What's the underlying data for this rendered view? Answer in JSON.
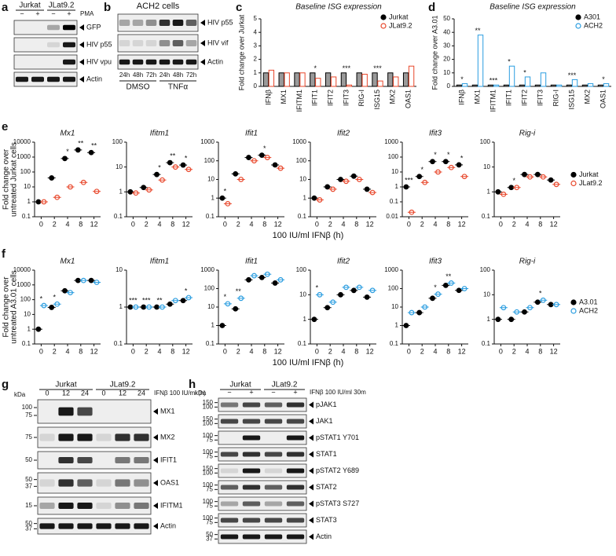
{
  "blots": [
    {
      "panel": "a",
      "groups": [
        "Jurkat",
        "JLat9.2"
      ],
      "lanes": [
        "−",
        "+",
        "−",
        "+"
      ],
      "treatment": "PMA",
      "bands": [
        {
          "name": "GFP",
          "levels": [
            0,
            0,
            0.3,
            1
          ]
        },
        {
          "name": "HIV p55",
          "levels": [
            0,
            0,
            0.1,
            0.9
          ]
        },
        {
          "name": "HIV vpu",
          "levels": [
            0,
            0,
            0,
            0.9
          ]
        },
        {
          "name": "Actin",
          "levels": [
            0.9,
            0.9,
            0.9,
            0.9
          ]
        }
      ]
    },
    {
      "panel": "b",
      "title": "ACH2 cells",
      "groups": [
        "DMSO",
        "TNFα"
      ],
      "lanes": [
        "24h",
        "48h",
        "72h",
        "24h",
        "48h",
        "72h"
      ],
      "bands": [
        {
          "name": "HIV p55",
          "levels": [
            0.3,
            0.3,
            0.4,
            0.8,
            0.9,
            0.6
          ]
        },
        {
          "name": "HIV vif",
          "levels": [
            0.1,
            0.1,
            0.1,
            0.4,
            0.6,
            0.3
          ]
        },
        {
          "name": "Actin",
          "levels": [
            0.9,
            0.9,
            0.9,
            0.9,
            0.9,
            0.9
          ]
        }
      ]
    },
    {
      "panel": "g",
      "kda": "kDa",
      "groups": [
        "Jurkat",
        "JLat9.2"
      ],
      "lanes": [
        "0",
        "12",
        "24",
        "0",
        "12",
        "24"
      ],
      "treatment": "IFNβ 100 IU/ml (h)",
      "bands": [
        {
          "name": "MX1",
          "ladder": [
            "100",
            "75"
          ],
          "levels": [
            0,
            0.9,
            0.7,
            0,
            0,
            0
          ]
        },
        {
          "name": "MX2",
          "ladder": [
            "75"
          ],
          "levels": [
            0.1,
            0.9,
            0.9,
            0.1,
            0.8,
            0.8
          ]
        },
        {
          "name": "IFIT1",
          "ladder": [
            "50"
          ],
          "levels": [
            0,
            0.8,
            0.7,
            0,
            0.5,
            0.5
          ]
        },
        {
          "name": "OAS1",
          "ladder": [
            "50",
            "37"
          ],
          "levels": [
            0.1,
            0.8,
            0.6,
            0.1,
            0.5,
            0.4
          ]
        },
        {
          "name": "IFITM1",
          "ladder": [
            "15"
          ],
          "levels": [
            0.3,
            0.9,
            0.9,
            0.1,
            0.4,
            0.5
          ]
        },
        {
          "name": "Actin",
          "ladder": [
            "50",
            "37"
          ],
          "levels": [
            0.9,
            0.9,
            0.9,
            0.9,
            0.9,
            0.9
          ]
        }
      ]
    },
    {
      "panel": "h",
      "kda": "kDa",
      "groups": [
        "Jurkat",
        "JLat9.2"
      ],
      "lanes": [
        "−",
        "+",
        "−",
        "+"
      ],
      "treatment": "IFNβ 100 IU/ml 30m",
      "bands": [
        {
          "name": "pJAK1",
          "ladder": [
            "150",
            "100"
          ],
          "levels": [
            0.5,
            0.7,
            0.6,
            0.8
          ]
        },
        {
          "name": "JAK1",
          "ladder": [
            "150",
            "100"
          ],
          "levels": [
            0.7,
            0.7,
            0.7,
            0.7
          ]
        },
        {
          "name": "pSTAT1 Y701",
          "ladder": [
            "100",
            "75"
          ],
          "levels": [
            0,
            0.9,
            0,
            0.9
          ]
        },
        {
          "name": "STAT1",
          "ladder": [
            "100",
            "75"
          ],
          "levels": [
            0.7,
            0.8,
            0.7,
            0.8
          ]
        },
        {
          "name": "pSTAT2 Y689",
          "ladder": [
            "150",
            "100"
          ],
          "levels": [
            0.1,
            0.9,
            0.1,
            0.9
          ]
        },
        {
          "name": "STAT2",
          "ladder": [
            "100",
            "75"
          ],
          "levels": [
            0.6,
            0.8,
            0.6,
            0.8
          ]
        },
        {
          "name": "pSTAT3 S727",
          "ladder": [
            "100",
            "75"
          ],
          "levels": [
            0.3,
            0.6,
            0.3,
            0.6
          ]
        },
        {
          "name": "STAT3",
          "ladder": [
            "100",
            "75"
          ],
          "levels": [
            0.7,
            0.7,
            0.7,
            0.7
          ]
        },
        {
          "name": "Actin",
          "ladder": [
            "50",
            "37"
          ],
          "levels": [
            0.9,
            0.9,
            0.9,
            0.9
          ]
        }
      ]
    }
  ],
  "chart_data": [
    {
      "type": "bar",
      "panel": "c",
      "title": "Baseline ISG expression",
      "ylabel": "Fold change over Jurkat",
      "categories": [
        "IFNβ",
        "MX1",
        "IFITM1",
        "IFIT1",
        "IFIT2",
        "IFIT3",
        "RIG-I",
        "ISG15",
        "MX2",
        "OAS1"
      ],
      "series": [
        {
          "name": "Jurkat",
          "color": "#000000",
          "filled": true,
          "values": [
            1,
            1,
            1,
            1,
            1,
            1,
            1,
            1,
            1,
            1
          ]
        },
        {
          "name": "JLat9.2",
          "color": "#e8472b",
          "filled": false,
          "values": [
            1.2,
            1,
            1,
            0.6,
            0.7,
            0.1,
            0.9,
            0.4,
            0.7,
            1.5
          ]
        }
      ],
      "significance": [
        null,
        null,
        null,
        "*",
        null,
        "***",
        null,
        "***",
        null,
        null
      ],
      "ylim": [
        0,
        5
      ],
      "yticks": [
        0,
        1,
        2,
        3,
        4,
        5
      ]
    },
    {
      "type": "bar",
      "panel": "d",
      "title": "Baseline ISG expression",
      "ylabel": "Fold change over A3.01",
      "categories": [
        "IFNβ",
        "MX1",
        "IFITM1",
        "IFIT1",
        "IFIT2",
        "IFIT3",
        "RIG-I",
        "ISG15",
        "MX2",
        "OAS1"
      ],
      "series": [
        {
          "name": "A301",
          "color": "#000000",
          "filled": true,
          "values": [
            1,
            1,
            1,
            1,
            1,
            1,
            1,
            1,
            1,
            1
          ]
        },
        {
          "name": "ACH2",
          "color": "#2a9de0",
          "filled": false,
          "values": [
            2,
            38,
            1,
            15,
            7,
            10,
            1,
            5,
            2,
            2
          ]
        }
      ],
      "significance": [
        "*",
        "**",
        "***",
        "*",
        "*",
        null,
        null,
        "***",
        null,
        "*"
      ],
      "ylim": [
        0,
        50
      ],
      "yticks": [
        0,
        10,
        20,
        30,
        40,
        50
      ]
    },
    {
      "type": "dot-row",
      "panel": "e",
      "log": true,
      "ylabel": [
        "Fold change over",
        "untreated Jurkat cells"
      ],
      "xlabel": "100 IU/ml IFNβ (h)",
      "categories": [
        "0",
        "2",
        "4",
        "8",
        "12"
      ],
      "series": [
        {
          "name": "Jurkat",
          "color": "#000000",
          "filled": true
        },
        {
          "name": "JLat9.2",
          "color": "#e8472b",
          "filled": false
        }
      ],
      "panels": [
        {
          "title": "Mx1",
          "ylim": [
            0.1,
            10000
          ],
          "yticks": [
            0.1,
            1,
            10,
            100,
            1000,
            10000
          ],
          "values": [
            [
              1,
              40,
              800,
              3000,
              2000
            ],
            [
              1,
              2,
              10,
              20,
              5
            ]
          ],
          "significance": [
            null,
            null,
            "*",
            "**",
            "**"
          ]
        },
        {
          "title": "Ifitm1",
          "ylim": [
            0.1,
            100
          ],
          "yticks": [
            0.1,
            1,
            10,
            100
          ],
          "values": [
            [
              1,
              1.5,
              5,
              15,
              12
            ],
            [
              0.9,
              1.2,
              3,
              10,
              8
            ]
          ],
          "significance": [
            null,
            null,
            "*",
            "**",
            "*"
          ]
        },
        {
          "title": "Ifit1",
          "ylim": [
            0.1,
            1000
          ],
          "yticks": [
            0.1,
            1,
            10,
            100,
            1000
          ],
          "values": [
            [
              1,
              20,
              150,
              200,
              60
            ],
            [
              0.5,
              10,
              100,
              150,
              40
            ]
          ],
          "significance": [
            "*",
            null,
            null,
            "*",
            null
          ]
        },
        {
          "title": "Ifit2",
          "ylim": [
            0.1,
            1000
          ],
          "yticks": [
            0.1,
            1,
            10,
            100,
            1000
          ],
          "values": [
            [
              1,
              4,
              10,
              15,
              3
            ],
            [
              0.8,
              3,
              8,
              10,
              2
            ]
          ],
          "significance": [
            null,
            null,
            null,
            null,
            null
          ]
        },
        {
          "title": "Ifit3",
          "ylim": [
            0.01,
            1000
          ],
          "yticks": [
            0.01,
            0.1,
            1,
            10,
            100,
            1000
          ],
          "values": [
            [
              1,
              5,
              50,
              50,
              30
            ],
            [
              0.02,
              2,
              10,
              20,
              5
            ]
          ],
          "significance": [
            "***",
            "*",
            "*",
            "*",
            "*"
          ]
        },
        {
          "title": "Rig-i",
          "ylim": [
            0.1,
            100
          ],
          "yticks": [
            0.1,
            1,
            10,
            100
          ],
          "values": [
            [
              1,
              1.5,
              5,
              5,
              3
            ],
            [
              0.8,
              1.5,
              4,
              4,
              2
            ]
          ],
          "significance": [
            null,
            "*",
            null,
            null,
            null
          ]
        }
      ]
    },
    {
      "type": "dot-row",
      "panel": "f",
      "log": true,
      "ylabel": [
        "Fold change over",
        "untreated A3.01 cells"
      ],
      "xlabel": "100 IU/ml IFNβ (h)",
      "categories": [
        "0",
        "2",
        "4",
        "8",
        "12"
      ],
      "series": [
        {
          "name": "A3.01",
          "color": "#000000",
          "filled": true
        },
        {
          "name": "ACH2",
          "color": "#2a9de0",
          "filled": false
        }
      ],
      "panels": [
        {
          "title": "Mx1",
          "ylim": [
            0.1,
            10000
          ],
          "yticks": [
            0.1,
            1,
            10,
            100,
            1000,
            10000
          ],
          "values": [
            [
              1,
              30,
              400,
              2000,
              2000
            ],
            [
              40,
              50,
              300,
              2000,
              1500
            ]
          ],
          "significance": [
            "*",
            "*",
            null,
            null,
            null
          ]
        },
        {
          "title": "Ifitm1",
          "ylim": [
            0.1,
            10
          ],
          "yticks": [
            0.1,
            1,
            10
          ],
          "values": [
            [
              1,
              1,
              1,
              1.2,
              1.5
            ],
            [
              1,
              1,
              1,
              1.5,
              1.8
            ]
          ],
          "significance": [
            "***",
            "***",
            "**",
            null,
            "*"
          ]
        },
        {
          "title": "Ifit1",
          "ylim": [
            0.1,
            1000
          ],
          "yticks": [
            0.1,
            1,
            10,
            100,
            1000
          ],
          "values": [
            [
              1,
              8,
              300,
              400,
              200
            ],
            [
              15,
              30,
              500,
              600,
              300
            ]
          ],
          "significance": [
            "*",
            "**",
            null,
            null,
            null
          ]
        },
        {
          "title": "Ifit2",
          "ylim": [
            0.1,
            100
          ],
          "yticks": [
            0.1,
            1,
            10,
            100
          ],
          "values": [
            [
              1,
              3,
              10,
              15,
              8
            ],
            [
              10,
              5,
              20,
              20,
              15
            ]
          ],
          "significance": [
            "*",
            null,
            null,
            null,
            null
          ]
        },
        {
          "title": "Ifit3",
          "ylim": [
            0.1,
            1000
          ],
          "yticks": [
            0.1,
            1,
            10,
            100,
            1000
          ],
          "values": [
            [
              1,
              5,
              30,
              150,
              80
            ],
            [
              5,
              10,
              50,
              200,
              100
            ]
          ],
          "significance": [
            null,
            null,
            "*",
            "**",
            null
          ]
        },
        {
          "title": "Rig-i",
          "ylim": [
            0.1,
            100
          ],
          "yticks": [
            0.1,
            1,
            10,
            100
          ],
          "values": [
            [
              1,
              1,
              2,
              5,
              4
            ],
            [
              3,
              2,
              3,
              6,
              4
            ]
          ],
          "significance": [
            null,
            null,
            null,
            "*",
            null
          ]
        }
      ]
    }
  ]
}
